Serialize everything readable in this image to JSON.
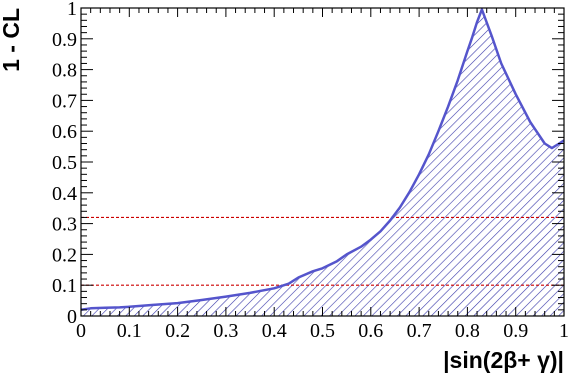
{
  "chart_data": {
    "type": "area",
    "xlabel": "|sin(2β+ γ)|",
    "ylabel": "1 - CL",
    "xlim": [
      0,
      1
    ],
    "ylim": [
      0,
      1
    ],
    "x_ticks": [
      "0",
      "0.1",
      "0.2",
      "0.3",
      "0.4",
      "0.5",
      "0.6",
      "0.7",
      "0.8",
      "0.9",
      "1"
    ],
    "y_ticks": [
      "0",
      "0.1",
      "0.2",
      "0.3",
      "0.4",
      "0.5",
      "0.6",
      "0.7",
      "0.8",
      "0.9",
      "1"
    ],
    "grid": false,
    "fill": "hatched",
    "series": [
      {
        "x": [
          0,
          0.02,
          0.05,
          0.08,
          0.1,
          0.15,
          0.2,
          0.25,
          0.3,
          0.35,
          0.4,
          0.43,
          0.45,
          0.48,
          0.5,
          0.53,
          0.55,
          0.58,
          0.6,
          0.62,
          0.64,
          0.66,
          0.68,
          0.7,
          0.72,
          0.74,
          0.76,
          0.78,
          0.8,
          0.81,
          0.82,
          0.83,
          0.85,
          0.87,
          0.9,
          0.93,
          0.96,
          0.975,
          0.99,
          1.0
        ],
        "y": [
          0.02,
          0.025,
          0.027,
          0.028,
          0.03,
          0.036,
          0.042,
          0.052,
          0.063,
          0.075,
          0.09,
          0.105,
          0.125,
          0.145,
          0.155,
          0.178,
          0.2,
          0.225,
          0.248,
          0.275,
          0.31,
          0.352,
          0.402,
          0.46,
          0.525,
          0.6,
          0.68,
          0.765,
          0.86,
          0.905,
          0.955,
          0.995,
          0.91,
          0.82,
          0.72,
          0.63,
          0.56,
          0.545,
          0.56,
          0.57
        ]
      }
    ],
    "reference_lines": [
      0.1,
      0.32
    ],
    "colors": {
      "curve": "#5555cc",
      "hatch": "#3a3aaa",
      "reference": "#cc0000"
    }
  }
}
